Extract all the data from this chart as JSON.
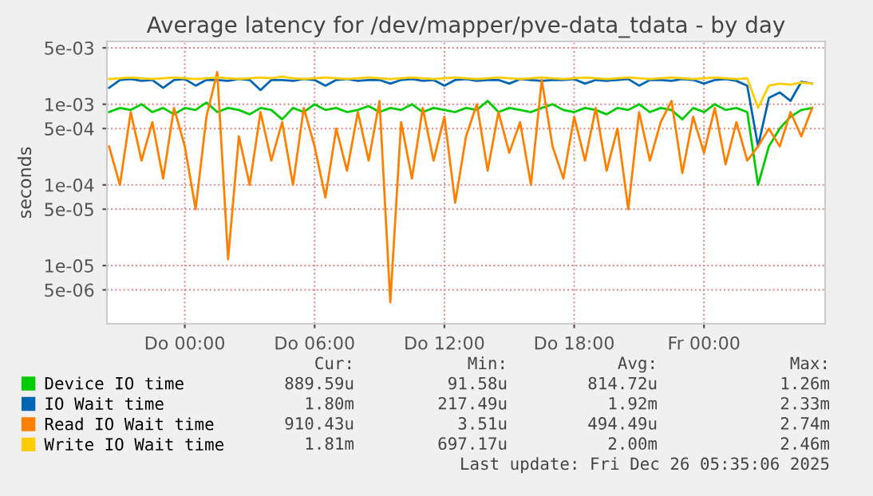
{
  "chart_data": {
    "type": "line",
    "title": "Average latency for /dev/mapper/pve-data_tdata - by day",
    "ylabel": "seconds",
    "log": "y",
    "grid": true,
    "legend": "bottom",
    "marker": "none",
    "line_style": "solid",
    "x": [
      "2025-12-24T20:30",
      "2025-12-24T21:00",
      "2025-12-24T21:30",
      "2025-12-24T22:00",
      "2025-12-24T22:30",
      "2025-12-24T23:00",
      "2025-12-24T23:30",
      "2025-12-25T00:00",
      "2025-12-25T00:30",
      "2025-12-25T01:00",
      "2025-12-25T01:30",
      "2025-12-25T02:00",
      "2025-12-25T02:30",
      "2025-12-25T03:00",
      "2025-12-25T03:30",
      "2025-12-25T04:00",
      "2025-12-25T04:30",
      "2025-12-25T05:00",
      "2025-12-25T05:30",
      "2025-12-25T06:00",
      "2025-12-25T06:30",
      "2025-12-25T07:00",
      "2025-12-25T07:30",
      "2025-12-25T08:00",
      "2025-12-25T08:30",
      "2025-12-25T09:00",
      "2025-12-25T09:30",
      "2025-12-25T10:00",
      "2025-12-25T10:30",
      "2025-12-25T11:00",
      "2025-12-25T11:30",
      "2025-12-25T12:00",
      "2025-12-25T12:30",
      "2025-12-25T13:00",
      "2025-12-25T13:30",
      "2025-12-25T14:00",
      "2025-12-25T14:30",
      "2025-12-25T15:00",
      "2025-12-25T15:30",
      "2025-12-25T16:00",
      "2025-12-25T16:30",
      "2025-12-25T17:00",
      "2025-12-25T17:30",
      "2025-12-25T18:00",
      "2025-12-25T18:30",
      "2025-12-25T19:00",
      "2025-12-25T19:30",
      "2025-12-25T20:00",
      "2025-12-25T20:30",
      "2025-12-25T21:00",
      "2025-12-25T21:30",
      "2025-12-25T22:00",
      "2025-12-25T22:30",
      "2025-12-25T23:00",
      "2025-12-25T23:30",
      "2025-12-26T00:00",
      "2025-12-26T00:30",
      "2025-12-26T01:00",
      "2025-12-26T01:30",
      "2025-12-26T02:00",
      "2025-12-26T02:30",
      "2025-12-26T03:00",
      "2025-12-26T03:30",
      "2025-12-26T04:00",
      "2025-12-26T04:30",
      "2025-12-26T05:00"
    ],
    "xlim": [
      "2025-12-24T20:24",
      "2025-12-26T05:36"
    ],
    "xticks": [
      {
        "value": "2025-12-25T00:00",
        "label": "Do 00:00"
      },
      {
        "value": "2025-12-25T06:00",
        "label": "Do 06:00"
      },
      {
        "value": "2025-12-25T12:00",
        "label": "Do 12:00"
      },
      {
        "value": "2025-12-25T18:00",
        "label": "Do 18:00"
      },
      {
        "value": "2025-12-26T00:00",
        "label": "Fr 00:00"
      }
    ],
    "ylim": [
      1.9e-06,
      0.006
    ],
    "yticks": [
      {
        "value": 5e-06,
        "label": "5e-06"
      },
      {
        "value": 1e-05,
        "label": "1e-05"
      },
      {
        "value": 5e-05,
        "label": "5e-05"
      },
      {
        "value": 0.0001,
        "label": "1e-04"
      },
      {
        "value": 0.0005,
        "label": "5e-04"
      },
      {
        "value": 0.001,
        "label": "1e-03"
      },
      {
        "value": 0.005,
        "label": "5e-03"
      }
    ],
    "series": [
      {
        "name": "Device IO time",
        "color": "#00cc00",
        "values": [
          0.0008,
          0.0009,
          0.00085,
          0.001,
          0.0008,
          0.0009,
          0.00075,
          0.0009,
          0.00085,
          0.00105,
          0.0008,
          0.0009,
          0.00085,
          0.00075,
          0.0009,
          0.00085,
          0.00065,
          0.0009,
          0.0008,
          0.001,
          0.00085,
          0.0009,
          0.0008,
          0.00085,
          0.00095,
          0.0008,
          0.0009,
          0.00085,
          0.001,
          0.0008,
          0.0009,
          0.00085,
          0.0008,
          0.0009,
          0.00085,
          0.0011,
          0.0008,
          0.0009,
          0.00085,
          0.0008,
          0.0009,
          0.001,
          0.00085,
          0.0008,
          0.0009,
          0.00085,
          0.00075,
          0.0009,
          0.00085,
          0.001,
          0.0008,
          0.0009,
          0.00085,
          0.00065,
          0.0009,
          0.0008,
          0.001,
          0.00085,
          0.0009,
          0.0008,
          0.0001,
          0.0003,
          0.0005,
          0.0007,
          0.00085,
          0.0009
        ]
      },
      {
        "name": "IO Wait time",
        "color": "#0066b3",
        "values": [
          0.0016,
          0.002,
          0.00205,
          0.00195,
          0.002,
          0.0016,
          0.002,
          0.00205,
          0.0017,
          0.002,
          0.002,
          0.00195,
          0.00205,
          0.002,
          0.0015,
          0.002,
          0.002,
          0.00195,
          0.00205,
          0.002,
          0.0017,
          0.002,
          0.00205,
          0.00195,
          0.002,
          0.002,
          0.0018,
          0.002,
          0.00205,
          0.00195,
          0.002,
          0.0017,
          0.002,
          0.00205,
          0.00195,
          0.002,
          0.002,
          0.0018,
          0.00205,
          0.002,
          0.00195,
          0.002,
          0.002,
          0.00205,
          0.0018,
          0.002,
          0.00195,
          0.002,
          0.00205,
          0.0017,
          0.002,
          0.002,
          0.00195,
          0.00205,
          0.002,
          0.0018,
          0.002,
          0.00205,
          0.00195,
          0.0017,
          0.0003,
          0.0012,
          0.0014,
          0.0011,
          0.0019,
          0.0018
        ]
      },
      {
        "name": "Read IO Wait time",
        "color": "#ff8000",
        "values": [
          0.0003,
          0.0001,
          0.0008,
          0.0002,
          0.0006,
          0.00012,
          0.0009,
          0.0003,
          5e-05,
          0.0007,
          0.0025,
          1.2e-05,
          0.0004,
          0.0001,
          0.0008,
          0.0002,
          0.0006,
          0.0001,
          0.0009,
          0.0003,
          7e-05,
          0.0005,
          0.00015,
          0.0008,
          0.0002,
          0.0011,
          3.5e-06,
          0.0006,
          0.00012,
          0.0009,
          0.0002,
          0.0007,
          6e-05,
          0.0004,
          0.001,
          0.00015,
          0.0008,
          0.00025,
          0.0006,
          0.0001,
          0.002,
          0.0003,
          0.00012,
          0.0007,
          0.0002,
          0.0009,
          0.00015,
          0.0005,
          5e-05,
          0.0008,
          0.0002,
          0.0006,
          0.0011,
          0.00014,
          0.0007,
          0.00025,
          0.0009,
          0.00018,
          0.0006,
          0.0002,
          0.0003,
          0.0005,
          0.0003,
          0.0008,
          0.0004,
          0.0009
        ]
      },
      {
        "name": "Write IO Wait time",
        "color": "#ffcc00",
        "values": [
          0.00205,
          0.0021,
          0.00215,
          0.0021,
          0.00205,
          0.0021,
          0.00215,
          0.0021,
          0.00205,
          0.0021,
          0.00215,
          0.0021,
          0.00205,
          0.0021,
          0.00215,
          0.0021,
          0.0022,
          0.0021,
          0.00205,
          0.0021,
          0.00215,
          0.0021,
          0.00205,
          0.0021,
          0.00215,
          0.0021,
          0.00205,
          0.0021,
          0.00215,
          0.0021,
          0.00205,
          0.0021,
          0.00215,
          0.0021,
          0.00205,
          0.0021,
          0.00215,
          0.0021,
          0.00205,
          0.0021,
          0.00215,
          0.0021,
          0.00205,
          0.0021,
          0.00215,
          0.0021,
          0.00205,
          0.0021,
          0.00215,
          0.0021,
          0.00205,
          0.0021,
          0.00215,
          0.0021,
          0.00205,
          0.0021,
          0.00215,
          0.0021,
          0.00205,
          0.0021,
          0.0009,
          0.0017,
          0.0018,
          0.00175,
          0.00185,
          0.0018
        ]
      }
    ],
    "annotations": [
      "Cur:",
      "Min:",
      "Avg:",
      "Max:",
      "889.59u",
      "91.58u",
      "814.72u",
      "1.26m",
      "1.80m",
      "217.49u",
      "1.92m",
      "2.33m",
      "910.43u",
      "3.51u",
      "494.49u",
      "2.74m",
      "1.81m",
      "697.17u",
      "2.00m",
      "2.46m",
      "Last update: Fri Dec 26 05:35:06 2025"
    ]
  }
}
